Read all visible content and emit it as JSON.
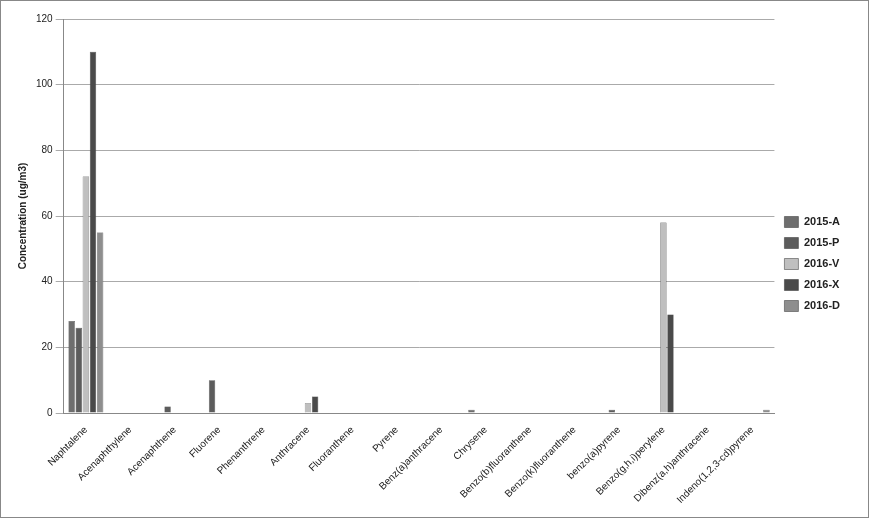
{
  "chart_data": {
    "type": "bar",
    "y_label": "Concentration (ug/m3)",
    "categories": [
      "Naphtalene",
      "Acenaphthylene",
      "Acenaphthene",
      "Fluorene",
      "Phenanthrene",
      "Anthracene",
      "Fluoranthene",
      "Pyrene",
      "Benz(a)anthracene",
      "Chrysene",
      "Benzo(b)fluoranthene",
      "Benzo(k)fluoranthene",
      "benzo(a)pyrene",
      "Benzo(g,h,i)perylene",
      "Dibenz(a,h)anthracene",
      "Indeno(1,2,3-cd)pyrene"
    ],
    "series": [
      {
        "name": "2015-A",
        "color": "#6e6e6e",
        "values": [
          28,
          0,
          0,
          0,
          0,
          0,
          0,
          0,
          0,
          1,
          0,
          0,
          0,
          0,
          0,
          0
        ]
      },
      {
        "name": "2015-P",
        "color": "#5c5c5c",
        "values": [
          26,
          0,
          2,
          10,
          0,
          0,
          0,
          0,
          0,
          0,
          0,
          0,
          1,
          0,
          0,
          0
        ]
      },
      {
        "name": "2016-V",
        "color": "#bfbfbf",
        "values": [
          72,
          0,
          0,
          0,
          0,
          3,
          0,
          0,
          0,
          0,
          0,
          0,
          0,
          58,
          0,
          0
        ]
      },
      {
        "name": "2016-X",
        "color": "#4a4a4a",
        "values": [
          110,
          0,
          0,
          0,
          0,
          5,
          0,
          0,
          0,
          0,
          0,
          0,
          0,
          30,
          0,
          0
        ]
      },
      {
        "name": "2016-D",
        "color": "#8e8e8e",
        "values": [
          55,
          0,
          0,
          0,
          0,
          0,
          0,
          0,
          0,
          0,
          0,
          0,
          0,
          0,
          0,
          1
        ]
      }
    ],
    "ylim": [
      0,
      120
    ],
    "yticks": [
      0,
      20,
      40,
      60,
      80,
      100,
      120
    ],
    "grid": true,
    "legend": "right"
  }
}
